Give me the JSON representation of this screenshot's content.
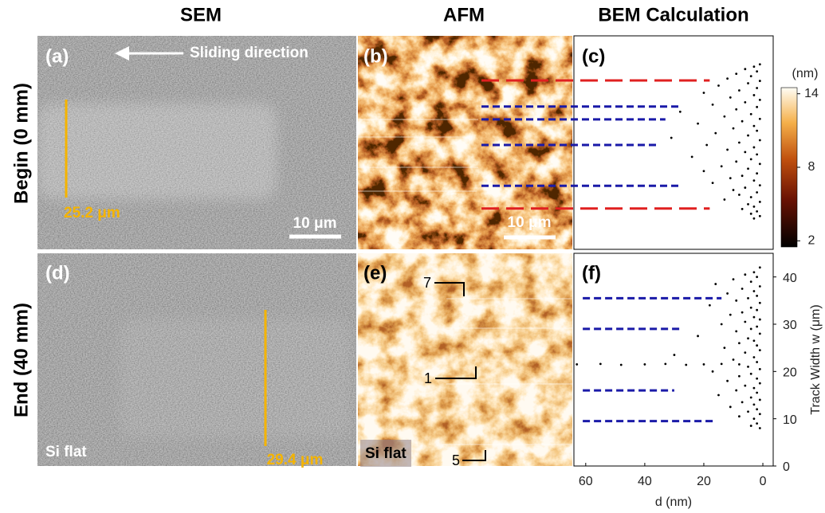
{
  "column_titles": [
    "SEM",
    "AFM",
    "BEM Calculation"
  ],
  "row_titles": [
    "Begin (0 mm)",
    "End (40 mm)"
  ],
  "panel_labels": [
    "(a)",
    "(b)",
    "(c)",
    "(d)",
    "(e)",
    "(f)"
  ],
  "sem": {
    "direction": "Sliding direction",
    "track_width_begin": "25.2 μm",
    "track_width_end": "29.4 μm",
    "scale_bar": "10 μm",
    "sample": "Si flat"
  },
  "afm": {
    "scale_bar": "10 μm",
    "sample": "Si flat",
    "markers": [
      "7",
      "1",
      "5"
    ],
    "colorbar": {
      "unit": "(nm)",
      "lim": [
        1.5,
        14.5
      ],
      "ticks": [
        2,
        8,
        14
      ]
    }
  },
  "chart_data": [
    {
      "type": "scatter",
      "color": "#000000",
      "xlim": [
        64,
        -3.5
      ],
      "ylim": [
        0,
        45
      ],
      "x": [
        1,
        3,
        6,
        2,
        9,
        4,
        12,
        1,
        5,
        15,
        2,
        8,
        20,
        3,
        11,
        1,
        6,
        17,
        2,
        9,
        28,
        4,
        13,
        1,
        7,
        22,
        3,
        10,
        2,
        16,
        5,
        31,
        1,
        8,
        19,
        3,
        12,
        6,
        2,
        24,
        4,
        9,
        1,
        14,
        5,
        20,
        2,
        7,
        11,
        3,
        17,
        1,
        6,
        10,
        2,
        8,
        4,
        13,
        1,
        5,
        3,
        7,
        2,
        4,
        1,
        3
      ],
      "values": [
        39,
        38.5,
        38,
        37.5,
        37,
        36.5,
        36,
        35.5,
        35,
        34.5,
        34,
        33.5,
        33,
        32.5,
        32,
        31.5,
        31,
        30.5,
        30,
        29.5,
        29,
        28.5,
        28,
        27.5,
        27,
        26.5,
        26,
        25.5,
        25,
        24.5,
        24,
        23.5,
        23,
        22.5,
        22,
        21.5,
        21,
        20.5,
        20,
        19.5,
        19,
        18.5,
        18,
        17.5,
        17,
        16.5,
        16,
        15.5,
        15,
        14.5,
        14,
        13.5,
        13,
        12.5,
        12,
        11.5,
        11,
        10.5,
        10,
        9.5,
        9,
        8.5,
        8,
        7.5,
        7,
        6.5
      ],
      "reference_lines": [
        {
          "y": 35.6,
          "x_end": 18,
          "color": "#e02020"
        },
        {
          "y": 30.1,
          "x_end": 28,
          "color": "#1a1aa8"
        },
        {
          "y": 27.4,
          "x_end": 33,
          "color": "#1a1aa8"
        },
        {
          "y": 22.0,
          "x_end": 35,
          "color": "#1a1aa8"
        },
        {
          "y": 13.4,
          "x_end": 28,
          "color": "#1a1aa8"
        },
        {
          "y": 8.6,
          "x_end": 18,
          "color": "#e02020"
        }
      ]
    },
    {
      "type": "scatter",
      "color": "#000000",
      "xlabel": "d (nm)",
      "ylabel": "Track Width w (μm)",
      "xlim": [
        64,
        -3.5
      ],
      "ylim": [
        0,
        45
      ],
      "xticks": [
        60,
        40,
        20,
        0
      ],
      "yticks": [
        0,
        10,
        20,
        30,
        40
      ],
      "x": [
        63,
        55,
        48,
        40,
        33,
        26,
        20,
        14,
        8,
        1,
        3,
        6,
        2,
        10,
        4,
        16,
        1,
        7,
        3,
        12,
        2,
        5,
        9,
        1,
        18,
        4,
        2,
        7,
        11,
        3,
        1,
        6,
        14,
        2,
        4,
        9,
        1,
        22,
        5,
        3,
        8,
        2,
        13,
        1,
        6,
        30,
        3,
        10,
        2,
        5,
        1,
        17,
        4,
        8,
        2,
        12,
        1,
        6,
        3,
        9,
        2,
        15,
        4,
        1,
        7,
        3,
        11,
        2,
        5,
        1,
        8,
        3,
        19,
        2,
        4,
        1
      ],
      "values": [
        21.5,
        21.6,
        21.4,
        21.5,
        21.6,
        21.4,
        21.5,
        21.6,
        21.5,
        42,
        41,
        40.5,
        40,
        39.5,
        39,
        38.5,
        38,
        37.5,
        37,
        36.5,
        36,
        35.5,
        35,
        34.5,
        34,
        33.5,
        33,
        32.5,
        32,
        31.5,
        31,
        30.5,
        30,
        29.5,
        29,
        28.5,
        28,
        27.5,
        27,
        26.5,
        26,
        25.5,
        25,
        24.5,
        24,
        23.5,
        23,
        22.5,
        22,
        21,
        20.5,
        20,
        19.5,
        19,
        18.5,
        18,
        17.5,
        17,
        16.5,
        16,
        15.5,
        15,
        14.5,
        14,
        13.5,
        13,
        12.5,
        12,
        11.5,
        11,
        10.5,
        10,
        9.5,
        9,
        8.5,
        8
      ],
      "reference_lines": [
        {
          "y": 35.5,
          "x": [
            61,
            14
          ],
          "color": "#1a1aa8"
        },
        {
          "y": 29,
          "x": [
            61,
            28
          ],
          "color": "#1a1aa8"
        },
        {
          "y": 16,
          "x": [
            61,
            30
          ],
          "color": "#1a1aa8"
        },
        {
          "y": 9.5,
          "x": [
            61,
            16
          ],
          "color": "#1a1aa8"
        }
      ]
    }
  ]
}
